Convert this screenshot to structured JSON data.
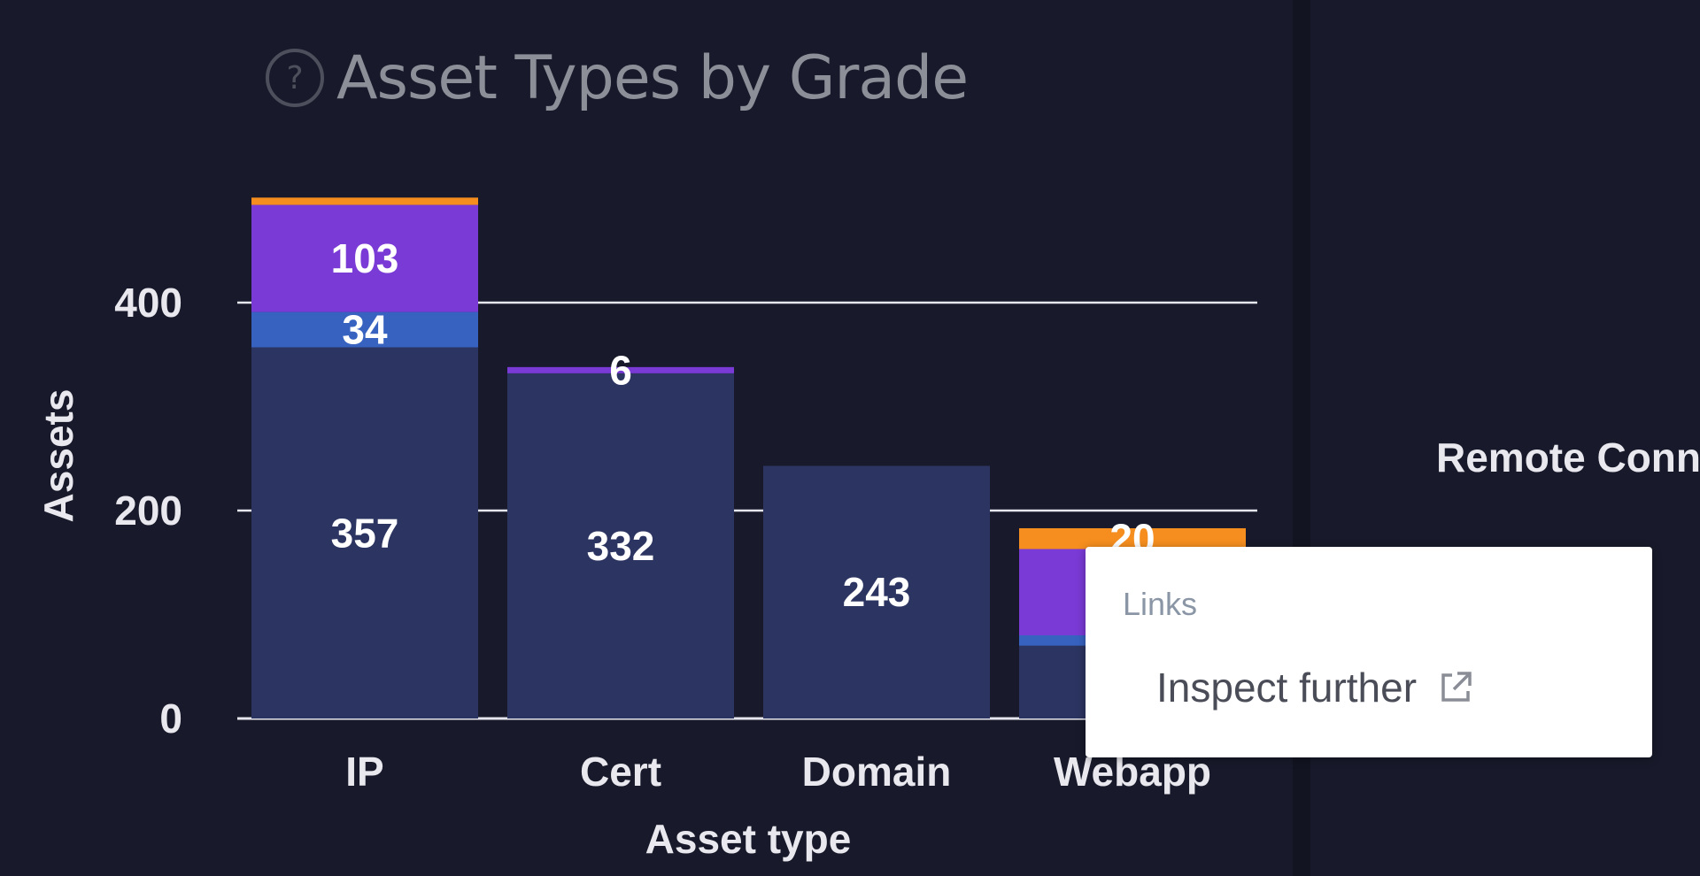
{
  "title": "Asset Types by Grade",
  "side_panel": {
    "label": "Remote Conne"
  },
  "tooltip": {
    "heading": "Links",
    "link_label": "Inspect further"
  },
  "colors": {
    "background": "#181a2b",
    "grade_base": "#2c3461",
    "grade_blue": "#3762c0",
    "grade_purple": "#7a3ad6",
    "grade_orange": "#f58e1f",
    "text": "#e8e8ee",
    "gridline": "#e6e6ee"
  },
  "chart_data": {
    "type": "bar",
    "stacked": true,
    "xlabel": "Asset type",
    "ylabel": "Assets",
    "categories": [
      "IP",
      "Cert",
      "Domain",
      "Webapp"
    ],
    "ylim": [
      0,
      500
    ],
    "yticks": [
      0,
      200,
      400
    ],
    "grid": true,
    "series": [
      {
        "color": "#2c3461",
        "values": [
          357,
          332,
          243,
          70
        ]
      },
      {
        "color": "#3762c0",
        "values": [
          34,
          0,
          0,
          10
        ]
      },
      {
        "color": "#7a3ad6",
        "values": [
          103,
          6,
          0,
          83
        ]
      },
      {
        "color": "#f58e1f",
        "values": [
          7,
          0,
          0,
          20
        ]
      }
    ],
    "data_labels": [
      [
        "357",
        "332",
        "243",
        ""
      ],
      [
        "34",
        "",
        "",
        ""
      ],
      [
        "103",
        "6",
        "",
        ""
      ],
      [
        "",
        "",
        "",
        "20"
      ]
    ]
  }
}
